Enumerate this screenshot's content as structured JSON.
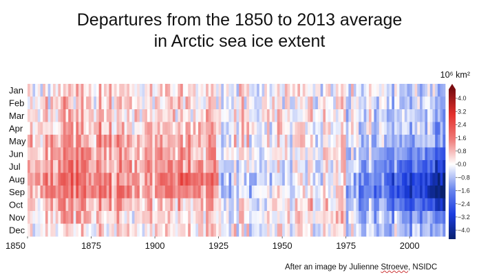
{
  "chart_data": {
    "type": "heatmap",
    "title_lines": [
      "Departures from the 1850 to 2013 average",
      "in Arctic sea ice extent"
    ],
    "unit_label": "10⁶ km²",
    "x_range": [
      1850,
      2013
    ],
    "x_ticks": [
      "1850",
      "1875",
      "1900",
      "1925",
      "1950",
      "1975",
      "2000"
    ],
    "rows": [
      "Jan",
      "Feb",
      "Mar",
      "Apr",
      "May",
      "Jun",
      "Jul",
      "Aug",
      "Sep",
      "Oct",
      "Nov",
      "Dec"
    ],
    "colorbar": {
      "min": -4.0,
      "max": 4.0,
      "ticks": [
        "4.0",
        "3.2",
        "2.4",
        "1.6",
        "0.8",
        "0.0",
        "−0.8",
        "−1.6",
        "−2.4",
        "−3.2",
        "−4.0"
      ],
      "colors": [
        "#08206e",
        "#1c3de0",
        "#6b87ee",
        "#ffffff",
        "#ee7a78",
        "#e3302c",
        "#7a0c10"
      ]
    },
    "era_means": [
      {
        "years": [
          1850,
          1875
        ],
        "months": [
          "Jan",
          "Feb",
          "Mar",
          "Apr",
          "May",
          "Jun",
          "Jul",
          "Aug",
          "Sep",
          "Oct",
          "Nov",
          "Dec"
        ],
        "values": [
          0.3,
          0.4,
          0.5,
          0.6,
          0.8,
          0.9,
          1.1,
          1.3,
          1.2,
          0.8,
          0.5,
          0.3
        ]
      },
      {
        "years": [
          1875,
          1900
        ],
        "months": [
          "Jan",
          "Feb",
          "Mar",
          "Apr",
          "May",
          "Jun",
          "Jul",
          "Aug",
          "Sep",
          "Oct",
          "Nov",
          "Dec"
        ],
        "values": [
          0.3,
          0.4,
          0.5,
          0.6,
          0.8,
          0.9,
          1.0,
          1.2,
          1.1,
          0.7,
          0.4,
          0.3
        ]
      },
      {
        "years": [
          1900,
          1925
        ],
        "months": [
          "Jan",
          "Feb",
          "Mar",
          "Apr",
          "May",
          "Jun",
          "Jul",
          "Aug",
          "Sep",
          "Oct",
          "Nov",
          "Dec"
        ],
        "values": [
          0.3,
          0.4,
          0.5,
          0.6,
          0.7,
          0.9,
          1.1,
          1.5,
          1.2,
          0.6,
          0.4,
          0.3
        ]
      },
      {
        "years": [
          1925,
          1950
        ],
        "months": [
          "Jan",
          "Feb",
          "Mar",
          "Apr",
          "May",
          "Jun",
          "Jul",
          "Aug",
          "Sep",
          "Oct",
          "Nov",
          "Dec"
        ],
        "values": [
          0.1,
          0.1,
          0.1,
          0.1,
          0.1,
          0.0,
          -0.2,
          -0.4,
          -0.3,
          0.0,
          0.0,
          0.1
        ]
      },
      {
        "years": [
          1950,
          1975
        ],
        "months": [
          "Jan",
          "Feb",
          "Mar",
          "Apr",
          "May",
          "Jun",
          "Jul",
          "Aug",
          "Sep",
          "Oct",
          "Nov",
          "Dec"
        ],
        "values": [
          0.1,
          0.1,
          0.1,
          0.1,
          0.1,
          0.1,
          0.1,
          0.0,
          0.1,
          0.4,
          0.5,
          0.1
        ]
      },
      {
        "years": [
          1975,
          2013
        ],
        "months": [
          "Jan",
          "Feb",
          "Mar",
          "Apr",
          "May",
          "Jun",
          "Jul",
          "Aug",
          "Sep",
          "Oct",
          "Nov",
          "Dec"
        ],
        "values": [
          -0.5,
          -0.6,
          -0.6,
          -0.7,
          -1.0,
          -1.4,
          -2.0,
          -2.6,
          -2.8,
          -2.0,
          -1.2,
          -0.8
        ]
      }
    ]
  },
  "footer": {
    "credit_before": "After an image by Julienne ",
    "credit_underlined": "Stroeve",
    "credit_after": ", NSIDC"
  }
}
